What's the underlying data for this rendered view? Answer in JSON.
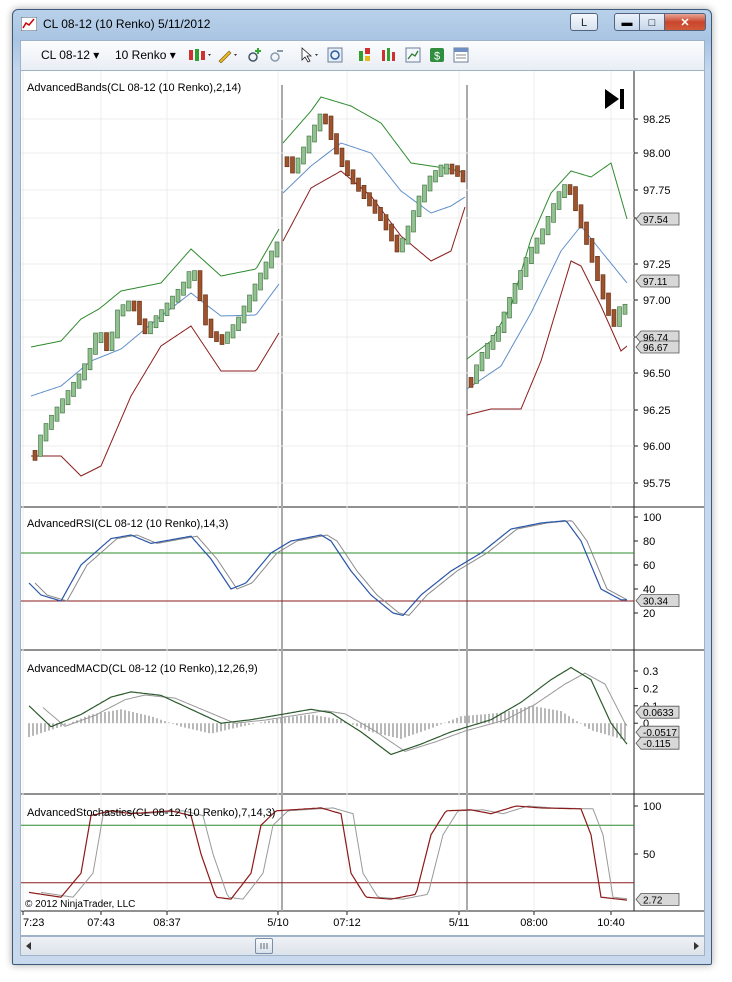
{
  "window": {
    "title": "CL 08-12 (10 Renko)  5/11/2012",
    "caption_l_label": "L",
    "min_glyph": "▬",
    "max_glyph": "□",
    "close_glyph": "✕"
  },
  "toolbar": {
    "instrument": "CL 08-12",
    "period": "10 Renko",
    "dropdown_glyph": "▾"
  },
  "panels": {
    "bands": {
      "label": "AdvancedBands(CL 08-12 (10 Renko),2,14)",
      "ticks": [
        "98.25",
        "98.00",
        "97.75",
        "97.50",
        "97.25",
        "97.00",
        "96.75",
        "96.50",
        "96.25",
        "96.00",
        "95.75"
      ],
      "markers": [
        "97.54",
        "97.11",
        "96.74",
        "96.67"
      ]
    },
    "rsi": {
      "label": "AdvancedRSI(CL 08-12 (10 Renko),14,3)",
      "ticks": [
        "100",
        "80",
        "60",
        "40",
        "20"
      ],
      "markers": [
        "30.34"
      ]
    },
    "macd": {
      "label": "AdvancedMACD(CL 08-12 (10 Renko),12,26,9)",
      "ticks": [
        "0.3",
        "0.2",
        "0.1",
        "0"
      ],
      "markers": [
        "0.0633",
        "-0.0517",
        "-0.115"
      ]
    },
    "stoch": {
      "label": "AdvancedStochastics(CL 08-12 (10 Renko),7,14,3)",
      "ticks": [
        "100",
        "50"
      ],
      "markers": [
        "2.72"
      ]
    }
  },
  "copyright": "© 2012 NinjaTrader, LLC",
  "time_axis": [
    "7:23",
    "07:43",
    "08:37",
    "5/10",
    "07:12",
    "5/11",
    "08:00",
    "10:40"
  ],
  "colors": {
    "upper_band": "#2e8b2e",
    "mid_band": "#5f8fc8",
    "lower_band": "#8b1e1e",
    "up_brick": "#8fc28f",
    "down_brick": "#a0522d"
  },
  "icons": [
    "app-chart-icon",
    "bar-type-icon",
    "draw-pencil-icon",
    "zoom-in-icon",
    "zoom-out-icon",
    "cursor-icon",
    "magnify-icon",
    "strategies-icon",
    "indicators-icon",
    "chart-properties-icon",
    "dollar-icon",
    "data-box-icon",
    "jump-to-end-icon",
    "scroll-left-icon",
    "scroll-right-icon",
    "scroll-thumb-icon"
  ]
}
